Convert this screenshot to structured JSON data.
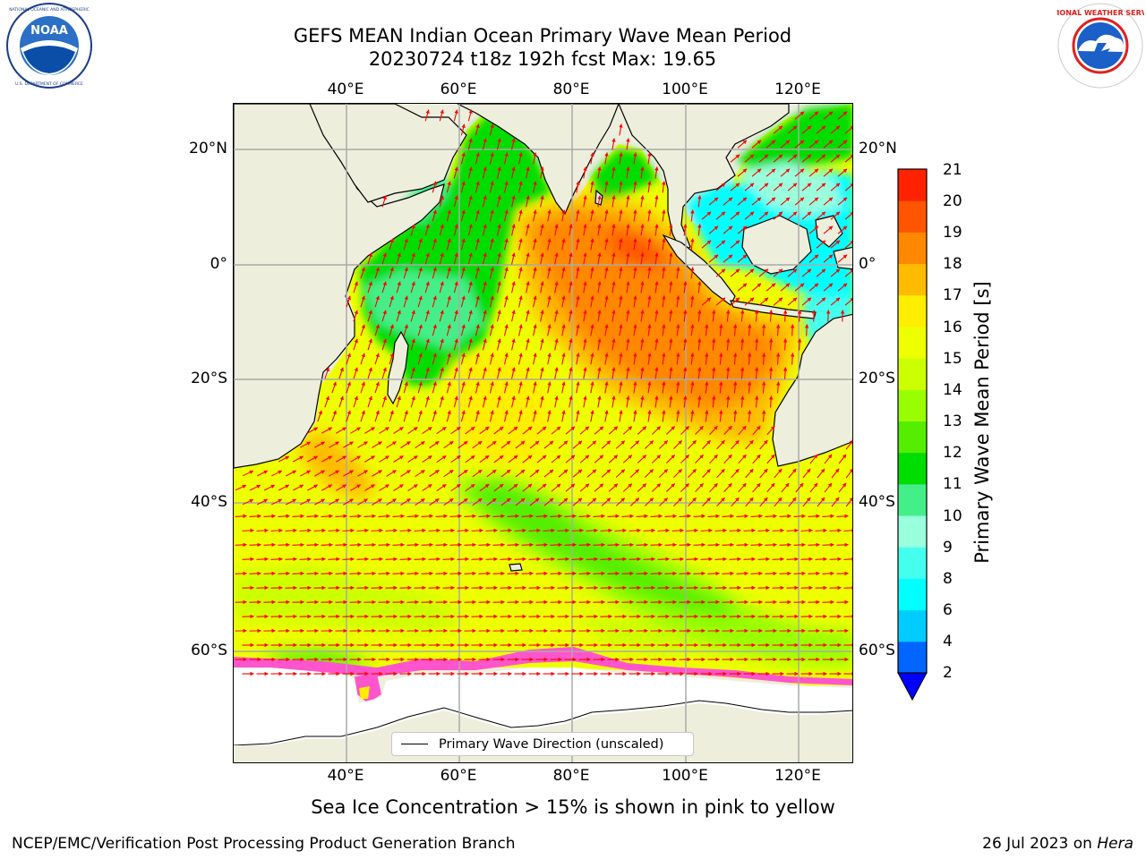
{
  "title": {
    "line1": "GEFS MEAN Indian Ocean Primary Wave Mean Period",
    "line2": "20230724 t18z 192h fcst   Max: 19.65"
  },
  "logos": {
    "left": {
      "name": "NOAA",
      "ring_text": "NATIONAL OCEANIC AND ATMOSPHERIC ADMINISTRATION · U.S. DEPARTMENT OF COMMERCE"
    },
    "right": {
      "name": "NATIONAL WEATHER SERVICE"
    }
  },
  "axes": {
    "top_lon": [
      "40°E",
      "60°E",
      "80°E",
      "100°E",
      "120°E"
    ],
    "bottom_lon": [
      "40°E",
      "60°E",
      "80°E",
      "100°E",
      "120°E"
    ],
    "left_lat": [
      "20°N",
      "0°",
      "20°S",
      "40°S",
      "60°S"
    ],
    "right_lat": [
      "20°N",
      "0°",
      "20°S",
      "40°S",
      "60°S"
    ]
  },
  "colorbar": {
    "label": "Primary Wave Mean Period [s]",
    "ticks": [
      "2",
      "4",
      "6",
      "8",
      "9",
      "10",
      "11",
      "12",
      "13",
      "14",
      "15",
      "16",
      "17",
      "18",
      "19",
      "20",
      "21"
    ],
    "colors": [
      "#0066ff",
      "#00ccff",
      "#00ffff",
      "#44ffee",
      "#99ffdd",
      "#44ee88",
      "#00dd00",
      "#55ee00",
      "#99ff00",
      "#ccff00",
      "#eeff00",
      "#ffee00",
      "#ffbb00",
      "#ff8800",
      "#ff5500",
      "#ff2200"
    ],
    "extend_min_color": "#0000ff"
  },
  "legend": {
    "label": "Primary Wave Direction (unscaled)"
  },
  "notes": {
    "sea_ice": "Sea Ice Concentration > 15% is shown in pink to yellow"
  },
  "footer": {
    "left": "NCEP/EMC/Verification Post Processing Product Generation Branch",
    "date": "26 Jul 2023 on ",
    "machine": "Hera"
  },
  "colors": {
    "land": "#eeeedd",
    "sea_ice": "#ff55cc",
    "vector": "#ff0000",
    "grid": "#aaaaaa"
  }
}
